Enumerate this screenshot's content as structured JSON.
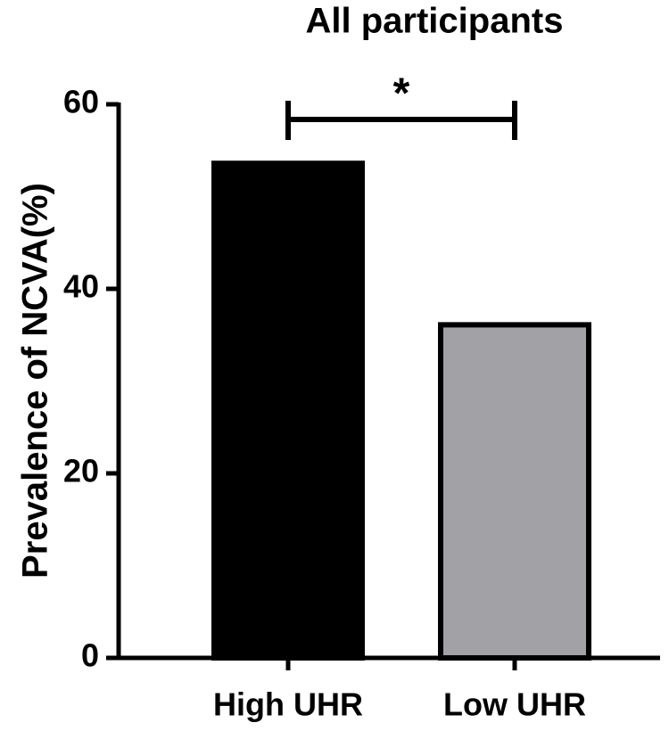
{
  "chart_data": {
    "type": "bar",
    "title": "All participants",
    "y_label": "Prevalence of NCVA(%)",
    "categories": [
      "High UHR",
      "Low UHR"
    ],
    "values": [
      53.6,
      36.1
    ],
    "colors": [
      "#000000",
      "#a2a1a6"
    ],
    "ylim": [
      0,
      60
    ],
    "yticks": [
      0,
      20,
      40,
      60
    ],
    "annotation": "*"
  }
}
